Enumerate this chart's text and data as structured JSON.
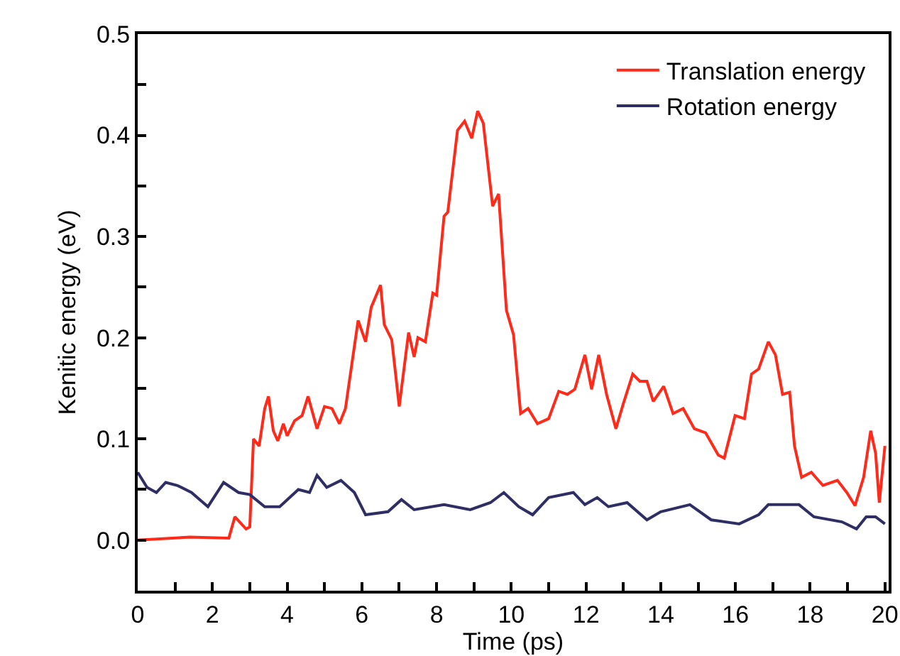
{
  "chart_data": {
    "type": "line",
    "xlabel": "Time (ps)",
    "ylabel": "Kenitic energy (eV)",
    "xlim": [
      0,
      20.1
    ],
    "ylim": [
      -0.05,
      0.5
    ],
    "xticks": [
      0,
      {
        "value": 1,
        "label": null
      },
      2,
      {
        "value": 3,
        "label": null
      },
      4,
      {
        "value": 5,
        "label": null
      },
      6,
      {
        "value": 7,
        "label": null
      },
      8,
      {
        "value": 9,
        "label": null
      },
      10,
      {
        "value": 11,
        "label": null
      },
      12,
      {
        "value": 13,
        "label": null
      },
      14,
      {
        "value": 15,
        "label": null
      },
      16,
      {
        "value": 17,
        "label": null
      },
      18,
      {
        "value": 19,
        "label": null
      },
      20
    ],
    "yticks": [
      {
        "value": -0.05,
        "label": null
      },
      {
        "value": 0,
        "label": "0.0"
      },
      {
        "value": 0.05,
        "label": null
      },
      0.1,
      {
        "value": 0.15,
        "label": null
      },
      0.2,
      {
        "value": 0.25,
        "label": null
      },
      0.3,
      {
        "value": 0.35,
        "label": null
      },
      0.4,
      {
        "value": 0.45,
        "label": null
      },
      0.5
    ],
    "grid": false,
    "legend": "top right",
    "marker": "none",
    "line_style": "solid",
    "series": [
      {
        "name": "Translation energy",
        "color": "#ff2a1a",
        "x": [
          0,
          1.4,
          2.44,
          2.6,
          2.9,
          3.0,
          3.1,
          3.25,
          3.4,
          3.5,
          3.63,
          3.75,
          3.9,
          4.0,
          4.2,
          4.4,
          4.56,
          4.8,
          5.0,
          5.2,
          5.4,
          5.56,
          5.9,
          6.1,
          6.25,
          6.5,
          6.6,
          6.8,
          7.0,
          7.25,
          7.4,
          7.5,
          7.7,
          7.9,
          8.0,
          8.2,
          8.3,
          8.56,
          8.75,
          8.94,
          9.1,
          9.25,
          9.5,
          9.66,
          9.87,
          10.06,
          10.25,
          10.45,
          10.7,
          11.0,
          11.27,
          11.5,
          11.7,
          11.97,
          12.15,
          12.34,
          12.55,
          12.8,
          13.0,
          13.25,
          13.44,
          13.63,
          13.8,
          14.08,
          14.33,
          14.6,
          14.9,
          15.2,
          15.54,
          15.7,
          15.99,
          16.24,
          16.43,
          16.62,
          16.88,
          17.07,
          17.26,
          17.45,
          17.58,
          17.77,
          18.03,
          18.34,
          18.73,
          18.98,
          19.2,
          19.43,
          19.62,
          19.75,
          19.85,
          20.0
        ],
        "values": [
          0,
          0.003,
          0.002,
          0.023,
          0.011,
          0.013,
          0.1,
          0.093,
          0.13,
          0.142,
          0.108,
          0.098,
          0.115,
          0.103,
          0.118,
          0.123,
          0.142,
          0.11,
          0.132,
          0.13,
          0.115,
          0.13,
          0.217,
          0.196,
          0.23,
          0.252,
          0.213,
          0.198,
          0.132,
          0.205,
          0.181,
          0.2,
          0.196,
          0.244,
          0.242,
          0.32,
          0.324,
          0.405,
          0.414,
          0.397,
          0.424,
          0.412,
          0.33,
          0.342,
          0.227,
          0.203,
          0.125,
          0.13,
          0.115,
          0.12,
          0.147,
          0.144,
          0.149,
          0.183,
          0.149,
          0.183,
          0.144,
          0.11,
          0.135,
          0.164,
          0.157,
          0.157,
          0.137,
          0.152,
          0.125,
          0.13,
          0.11,
          0.106,
          0.084,
          0.081,
          0.123,
          0.12,
          0.164,
          0.169,
          0.196,
          0.183,
          0.144,
          0.146,
          0.093,
          0.062,
          0.067,
          0.054,
          0.059,
          0.047,
          0.034,
          0.062,
          0.108,
          0.086,
          0.037,
          0.093
        ]
      },
      {
        "name": "Rotation energy",
        "color": "#2e2e64",
        "x": [
          0,
          0.25,
          0.5,
          0.75,
          1.06,
          1.44,
          1.88,
          2.3,
          2.7,
          3.0,
          3.4,
          3.8,
          4.3,
          4.6,
          4.8,
          5.06,
          5.44,
          5.8,
          6.1,
          6.7,
          7.06,
          7.4,
          8.2,
          8.9,
          9.44,
          9.8,
          10.2,
          10.57,
          11.0,
          11.66,
          11.97,
          12.3,
          12.6,
          13.1,
          13.63,
          14.0,
          14.78,
          15.35,
          16.1,
          16.62,
          16.88,
          17.7,
          18.1,
          18.85,
          19.24,
          19.5,
          19.75,
          20.0
        ],
        "values": [
          0.067,
          0.052,
          0.047,
          0.057,
          0.054,
          0.047,
          0.033,
          0.057,
          0.047,
          0.045,
          0.033,
          0.033,
          0.05,
          0.047,
          0.064,
          0.052,
          0.059,
          0.047,
          0.025,
          0.028,
          0.04,
          0.03,
          0.035,
          0.03,
          0.037,
          0.047,
          0.033,
          0.025,
          0.042,
          0.047,
          0.035,
          0.042,
          0.033,
          0.037,
          0.02,
          0.028,
          0.035,
          0.02,
          0.016,
          0.025,
          0.035,
          0.035,
          0.023,
          0.018,
          0.011,
          0.023,
          0.023,
          0.016
        ]
      }
    ]
  }
}
